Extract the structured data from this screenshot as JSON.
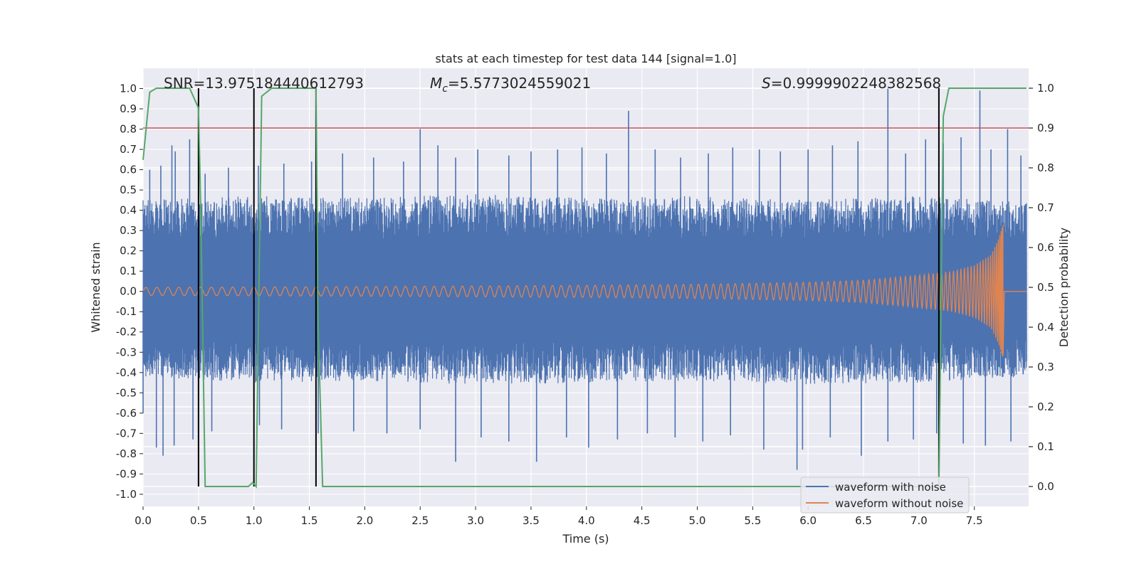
{
  "chart_data": {
    "type": "line",
    "title": "stats at each timestep for test data 144 [signal=1.0]",
    "xlabel": "Time (s)",
    "ylabel": "Whitened strain",
    "y2label": "Detection probability",
    "xlim": [
      0.0,
      7.99
    ],
    "ylim": [
      -1.06,
      1.1
    ],
    "y2lim": [
      -0.05,
      1.05
    ],
    "x_ticks": [
      0.0,
      0.5,
      1.0,
      1.5,
      2.0,
      2.5,
      3.0,
      3.5,
      4.0,
      4.5,
      5.0,
      5.5,
      6.0,
      6.5,
      7.0,
      7.5
    ],
    "x_tick_labels": [
      "0.0",
      "0.5",
      "1.0",
      "1.5",
      "2.0",
      "2.5",
      "3.0",
      "3.5",
      "4.0",
      "4.5",
      "5.0",
      "5.5",
      "6.0",
      "6.5",
      "7.0",
      "7.5"
    ],
    "y_ticks": [
      1.0,
      0.9,
      0.8,
      0.7,
      0.6,
      0.5,
      0.4,
      0.3,
      0.2,
      0.1,
      0.0,
      -0.1,
      -0.2,
      -0.3,
      -0.4,
      -0.5,
      -0.6,
      -0.7,
      -0.8,
      -0.9,
      -1.0
    ],
    "y_tick_labels": [
      "1.0",
      "0.9",
      "0.8",
      "0.7",
      "0.6",
      "0.5",
      "0.4",
      "0.3",
      "0.2",
      "0.1",
      "0.0",
      "-0.1",
      "-0.2",
      "-0.3",
      "-0.4",
      "-0.5",
      "-0.6",
      "-0.7",
      "-0.8",
      "-0.9",
      "-1.0"
    ],
    "y2_ticks": [
      1.0,
      0.9,
      0.8,
      0.7,
      0.6,
      0.5,
      0.4,
      0.3,
      0.2,
      0.1,
      0.0
    ],
    "y2_tick_labels": [
      "1.0",
      "0.9",
      "0.8",
      "0.7",
      "0.6",
      "0.5",
      "0.4",
      "0.3",
      "0.2",
      "0.1",
      "0.0"
    ],
    "annotations": {
      "snr": "SNR=13.975184440612793",
      "mc_symbol": "M",
      "mc_sub": "c",
      "mc_value": "=5.5773024559021",
      "s_symbol": "S",
      "s_value": "=0.9999902248382568"
    },
    "threshold": {
      "value": 0.9,
      "axis": "y2",
      "color": "#c44e52"
    },
    "vertical_lines": [
      0.5,
      1.0,
      1.56,
      7.18
    ],
    "noisy": {
      "name": "waveform with noise",
      "color": "#4c72b0",
      "envelope_x": [
        0.0,
        1.0,
        2.0,
        3.0,
        4.0,
        5.0,
        6.0,
        7.0,
        7.99
      ],
      "envelope_upper": [
        0.45,
        0.47,
        0.46,
        0.48,
        0.46,
        0.47,
        0.45,
        0.47,
        0.44
      ],
      "envelope_lower": [
        -0.42,
        -0.45,
        -0.44,
        -0.46,
        -0.45,
        -0.44,
        -0.46,
        -0.45,
        -0.42
      ],
      "peak_x": [
        0.06,
        0.16,
        0.26,
        0.29,
        0.42,
        0.56,
        0.77,
        1.04,
        1.27,
        1.52,
        1.8,
        2.08,
        2.35,
        2.5,
        2.66,
        2.82,
        3.02,
        3.3,
        3.5,
        3.74,
        3.96,
        4.18,
        4.38,
        4.62,
        4.85,
        5.1,
        5.32,
        5.56,
        5.75,
        6.0,
        6.22,
        6.45,
        6.72,
        6.88,
        7.06,
        7.22,
        7.38,
        7.55,
        7.65,
        7.8,
        7.92
      ],
      "peak_y": [
        0.6,
        0.62,
        0.72,
        0.69,
        0.75,
        0.58,
        0.61,
        0.62,
        0.63,
        0.64,
        0.68,
        0.66,
        0.64,
        0.8,
        0.72,
        0.66,
        0.7,
        0.67,
        0.69,
        0.7,
        0.71,
        0.68,
        0.89,
        0.7,
        0.66,
        0.68,
        0.71,
        0.7,
        0.69,
        0.7,
        0.72,
        0.74,
        1.0,
        0.68,
        0.75,
        0.73,
        0.76,
        0.99,
        0.7,
        0.8,
        0.67
      ],
      "trough_x": [
        0.0,
        0.12,
        0.18,
        0.28,
        0.45,
        0.62,
        1.05,
        1.25,
        1.58,
        1.9,
        2.2,
        2.5,
        2.82,
        3.05,
        3.3,
        3.55,
        3.82,
        4.02,
        4.28,
        4.55,
        4.8,
        5.05,
        5.3,
        5.6,
        5.9,
        5.95,
        6.2,
        6.48,
        6.72,
        6.95,
        7.16,
        7.4,
        7.6,
        7.83
      ],
      "trough_y": [
        -0.6,
        -0.77,
        -0.81,
        -0.76,
        -0.73,
        -0.69,
        -0.66,
        -0.68,
        -0.7,
        -0.69,
        -0.7,
        -0.68,
        -0.84,
        -0.72,
        -0.74,
        -0.84,
        -0.72,
        -0.77,
        -0.73,
        -0.7,
        -0.72,
        -0.74,
        -0.71,
        -0.78,
        -0.88,
        -0.78,
        -0.72,
        -0.81,
        -0.74,
        -0.73,
        -0.7,
        -0.75,
        -0.76,
        -0.74
      ]
    },
    "clean": {
      "name": "waveform without noise",
      "color": "#dd8452",
      "t_merger": 7.76,
      "amplitude_x": [
        0.0,
        1.0,
        2.0,
        3.0,
        4.0,
        5.0,
        6.0,
        6.5,
        7.0,
        7.3,
        7.5,
        7.65,
        7.72,
        7.76
      ],
      "amplitude_y": [
        0.02,
        0.022,
        0.024,
        0.027,
        0.03,
        0.035,
        0.045,
        0.055,
        0.08,
        0.1,
        0.13,
        0.18,
        0.26,
        0.33
      ]
    },
    "probability": {
      "name": "detection probability",
      "color": "#55a868",
      "x": [
        0.0,
        0.06,
        0.12,
        0.42,
        0.5,
        0.52,
        0.56,
        0.6,
        0.95,
        0.99,
        1.02,
        1.07,
        1.16,
        1.56,
        1.58,
        1.62,
        4.2,
        4.35,
        7.17,
        7.18,
        7.22,
        7.27,
        7.5,
        7.97
      ],
      "y": [
        0.82,
        0.99,
        1.0,
        1.0,
        0.95,
        0.7,
        0.0,
        0.0,
        0.0,
        0.01,
        0.0,
        0.98,
        1.0,
        1.0,
        0.4,
        0.0,
        0.0,
        0.0,
        0.0,
        0.0,
        0.93,
        1.0,
        1.0,
        1.0
      ]
    },
    "legend": {
      "placement": "lower-right",
      "entries": [
        {
          "label": "waveform with noise",
          "color": "#4c72b0"
        },
        {
          "label": "waveform without noise",
          "color": "#dd8452"
        }
      ]
    }
  }
}
